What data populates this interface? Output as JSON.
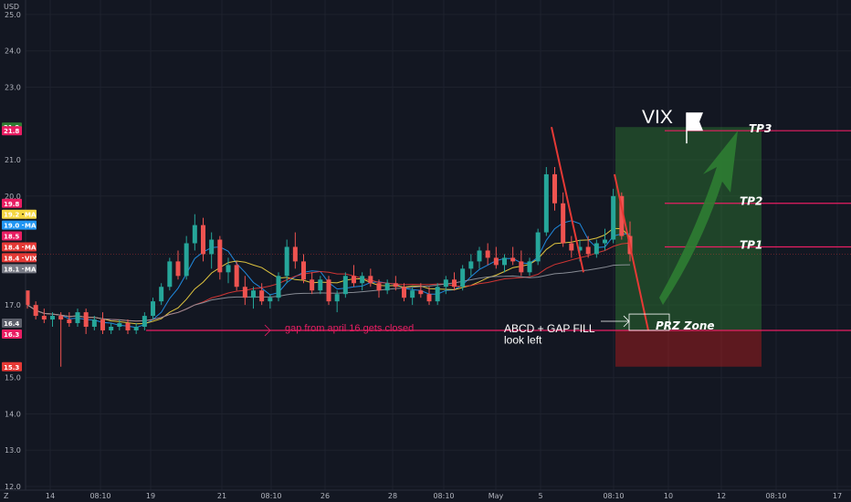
{
  "chart_data": {
    "type": "candlestick",
    "symbol": "VIX",
    "currency": "USD",
    "ylim": [
      11.9,
      25.4
    ],
    "y_ticks": [
      25.0,
      24.0,
      23.0,
      21.0,
      20.0,
      17.0,
      15.0,
      14.0,
      13.0,
      12.0
    ],
    "x_ticks": [
      {
        "label": "14",
        "x_frac": 0.0
      },
      {
        "label": "08:10",
        "x_frac": 0.0
      },
      {
        "label": "19",
        "x_frac": 0.0
      },
      {
        "label": "21",
        "x_frac": 0.0
      },
      {
        "label": "08:10",
        "x_frac": 0.0
      },
      {
        "label": "26",
        "x_frac": 0.0
      },
      {
        "label": "28",
        "x_frac": 0.0
      },
      {
        "label": "08:10",
        "x_frac": 0.0
      },
      {
        "label": "May",
        "x_frac": 0.0
      },
      {
        "label": "5",
        "x_frac": 0.0
      },
      {
        "label": "08:10",
        "x_frac": 0.0
      },
      {
        "label": "10",
        "x_frac": 0.0
      },
      {
        "label": "12",
        "x_frac": 0.0
      },
      {
        "label": "08:10",
        "x_frac": 0.0
      },
      {
        "label": "17",
        "x_frac": 0.0
      }
    ],
    "price_tags": [
      {
        "label": "21.9",
        "value": 21.9,
        "color": "#2e7d32"
      },
      {
        "label": "21.8",
        "value": 21.8,
        "color": "#e91e63"
      },
      {
        "label": "19.8",
        "value": 19.8,
        "color": "#e91e63"
      },
      {
        "label": "19.2",
        "label2": "MA",
        "value": 19.5,
        "color": "#f5d742",
        "text_color": "#000000"
      },
      {
        "label": "19.0",
        "label2": "MA",
        "value": 19.2,
        "color": "#2196f3"
      },
      {
        "label": "18.5",
        "value": 18.9,
        "color": "#e91e63"
      },
      {
        "label": "18.4",
        "label2": "MA",
        "value": 18.6,
        "color": "#e53935"
      },
      {
        "label": "18.4",
        "label2": "VIX",
        "value": 18.3,
        "color": "#e53935"
      },
      {
        "label": "18.1",
        "label2": "MA",
        "value": 18.0,
        "color": "#787b86"
      },
      {
        "label": "16.4",
        "value": 16.5,
        "color": "#5d606b"
      },
      {
        "label": "16.3",
        "value": 16.2,
        "color": "#e91e63"
      },
      {
        "label": "15.3",
        "value": 15.3,
        "color": "#e53935"
      }
    ],
    "candles_ohlc": [
      [
        17.4,
        17.3,
        16.9,
        17.0
      ],
      [
        17.0,
        17.1,
        16.6,
        16.7
      ],
      [
        16.7,
        16.9,
        16.5,
        16.6
      ],
      [
        16.6,
        16.8,
        16.4,
        16.7
      ],
      [
        16.7,
        16.8,
        15.3,
        16.6
      ],
      [
        16.6,
        16.8,
        16.4,
        16.5
      ],
      [
        16.5,
        16.9,
        16.4,
        16.8
      ],
      [
        16.8,
        16.9,
        16.2,
        16.4
      ],
      [
        16.4,
        16.7,
        16.3,
        16.6
      ],
      [
        16.6,
        16.8,
        16.2,
        16.3
      ],
      [
        16.3,
        16.5,
        16.2,
        16.4
      ],
      [
        16.4,
        16.6,
        16.3,
        16.5
      ],
      [
        16.5,
        16.6,
        16.2,
        16.3
      ],
      [
        16.3,
        16.5,
        16.2,
        16.4
      ],
      [
        16.4,
        16.8,
        16.3,
        16.7
      ],
      [
        16.7,
        17.2,
        16.6,
        17.1
      ],
      [
        17.1,
        17.6,
        17.0,
        17.5
      ],
      [
        17.5,
        18.3,
        17.4,
        18.2
      ],
      [
        18.2,
        18.5,
        17.7,
        17.8
      ],
      [
        17.8,
        18.9,
        17.7,
        18.7
      ],
      [
        18.7,
        19.5,
        18.5,
        19.2
      ],
      [
        19.2,
        19.4,
        18.2,
        18.4
      ],
      [
        18.4,
        19.0,
        18.0,
        18.8
      ],
      [
        18.8,
        18.9,
        17.7,
        17.9
      ],
      [
        17.9,
        18.3,
        17.6,
        18.1
      ],
      [
        18.1,
        18.2,
        17.4,
        17.5
      ],
      [
        17.5,
        17.8,
        17.0,
        17.2
      ],
      [
        17.2,
        17.5,
        16.9,
        17.4
      ],
      [
        17.4,
        17.6,
        17.0,
        17.1
      ],
      [
        17.1,
        17.3,
        16.9,
        17.2
      ],
      [
        17.2,
        17.9,
        17.1,
        17.8
      ],
      [
        17.8,
        18.8,
        17.6,
        18.6
      ],
      [
        18.6,
        19.0,
        18.0,
        18.2
      ],
      [
        18.2,
        18.4,
        17.6,
        17.7
      ],
      [
        17.7,
        17.9,
        17.3,
        17.4
      ],
      [
        17.4,
        17.8,
        17.3,
        17.7
      ],
      [
        17.7,
        17.8,
        17.0,
        17.1
      ],
      [
        17.1,
        17.4,
        16.8,
        17.3
      ],
      [
        17.3,
        17.9,
        17.2,
        17.8
      ],
      [
        17.8,
        18.1,
        17.5,
        17.6
      ],
      [
        17.6,
        17.9,
        17.4,
        17.8
      ],
      [
        17.8,
        18.0,
        17.5,
        17.6
      ],
      [
        17.6,
        17.7,
        17.2,
        17.4
      ],
      [
        17.4,
        17.7,
        17.3,
        17.6
      ],
      [
        17.6,
        17.8,
        17.4,
        17.5
      ],
      [
        17.5,
        17.6,
        17.1,
        17.2
      ],
      [
        17.2,
        17.5,
        17.0,
        17.4
      ],
      [
        17.4,
        17.6,
        17.2,
        17.3
      ],
      [
        17.3,
        17.5,
        17.0,
        17.1
      ],
      [
        17.1,
        17.6,
        17.0,
        17.5
      ],
      [
        17.5,
        17.8,
        17.3,
        17.7
      ],
      [
        17.7,
        17.9,
        17.4,
        17.5
      ],
      [
        17.5,
        18.1,
        17.4,
        18.0
      ],
      [
        18.0,
        18.4,
        17.8,
        18.2
      ],
      [
        18.2,
        18.6,
        18.0,
        18.5
      ],
      [
        18.5,
        18.7,
        18.1,
        18.3
      ],
      [
        18.3,
        18.6,
        18.0,
        18.1
      ],
      [
        18.1,
        18.4,
        17.9,
        18.3
      ],
      [
        18.3,
        18.6,
        18.1,
        18.2
      ],
      [
        18.2,
        18.5,
        17.8,
        17.9
      ],
      [
        17.9,
        18.3,
        17.8,
        18.2
      ],
      [
        18.2,
        19.1,
        18.1,
        19.0
      ],
      [
        19.0,
        20.8,
        18.9,
        20.6
      ],
      [
        20.6,
        20.8,
        19.6,
        19.8
      ],
      [
        19.8,
        20.1,
        18.6,
        18.7
      ],
      [
        18.7,
        18.9,
        18.3,
        18.5
      ],
      [
        18.5,
        18.8,
        18.2,
        18.6
      ],
      [
        18.6,
        18.9,
        18.3,
        18.4
      ],
      [
        18.4,
        18.8,
        18.3,
        18.7
      ],
      [
        18.7,
        19.1,
        18.5,
        18.8
      ],
      [
        18.8,
        20.2,
        18.7,
        20.0
      ],
      [
        20.0,
        20.1,
        18.8,
        18.9
      ],
      [
        18.9,
        19.3,
        18.2,
        18.4
      ]
    ],
    "moving_averages": [
      {
        "label": "MA",
        "color": "#2196f3",
        "period": 5
      },
      {
        "label": "MA",
        "color": "#f5d742",
        "period": 10
      },
      {
        "label": "MA",
        "color": "#e53935",
        "period": 20
      },
      {
        "label": "MA",
        "color": "#9598a1",
        "period": 40
      }
    ],
    "horizontal_levels": [
      {
        "label": "TP3",
        "value": 21.8
      },
      {
        "label": "TP2",
        "value": 19.8
      },
      {
        "label": "TP1",
        "value": 18.6
      },
      {
        "label": "",
        "value": 16.3
      }
    ],
    "annotations": {
      "title": "VIX",
      "gap_note": "gap from april 16 gets closed",
      "pattern_line1": "ABCD + GAP FILL",
      "pattern_line2": "look left",
      "zone_label": "PRZ Zone",
      "tp3": "TP3",
      "tp2": "TP2",
      "tp1": "TP1"
    },
    "target_zone": {
      "top": 21.8,
      "entry": 16.3,
      "stop": 15.3
    }
  }
}
